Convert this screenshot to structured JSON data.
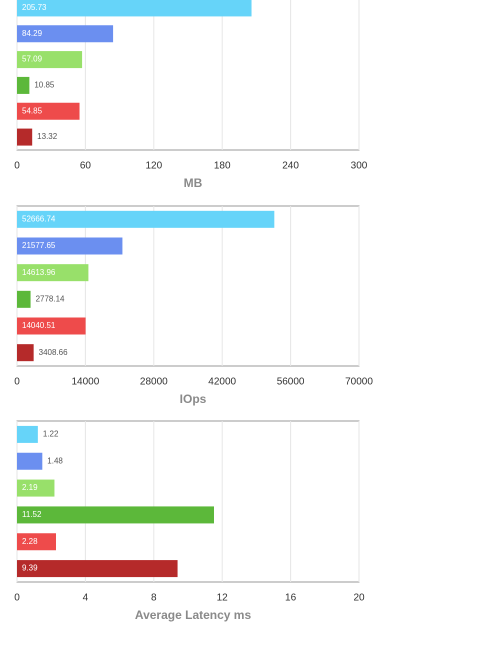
{
  "chart_data": [
    {
      "type": "bar",
      "orientation": "horizontal",
      "categories": [
        null,
        null,
        null,
        null,
        null,
        null
      ],
      "values": [
        205.73,
        84.29,
        57.09,
        10.85,
        54.85,
        13.32
      ],
      "colors": [
        "#66d4f9",
        "#6b8ff0",
        "#98e06a",
        "#5cb83a",
        "#ee4b4b",
        "#b52a2a"
      ],
      "xlim": [
        0,
        300
      ],
      "xticks": [
        0,
        60,
        120,
        180,
        240,
        300
      ],
      "xlabel": "MB",
      "grid": true
    },
    {
      "type": "bar",
      "orientation": "horizontal",
      "categories": [
        null,
        null,
        null,
        null,
        null,
        null
      ],
      "values": [
        52666.74,
        21577.65,
        14613.96,
        2778.14,
        14040.51,
        3408.66
      ],
      "colors": [
        "#66d4f9",
        "#6b8ff0",
        "#98e06a",
        "#5cb83a",
        "#ee4b4b",
        "#b52a2a"
      ],
      "xlim": [
        0,
        70000
      ],
      "xticks": [
        0,
        14000,
        28000,
        42000,
        56000,
        70000
      ],
      "xlabel": "IOps",
      "grid": true
    },
    {
      "type": "bar",
      "orientation": "horizontal",
      "categories": [
        null,
        null,
        null,
        null,
        null,
        null
      ],
      "values": [
        1.22,
        1.48,
        2.19,
        11.52,
        2.28,
        9.39
      ],
      "colors": [
        "#66d4f9",
        "#6b8ff0",
        "#98e06a",
        "#5cb83a",
        "#ee4b4b",
        "#b52a2a"
      ],
      "xlim": [
        0,
        20
      ],
      "xticks": [
        0,
        4,
        8,
        12,
        16,
        20
      ],
      "xlabel": "Average Latency ms",
      "grid": true
    }
  ]
}
